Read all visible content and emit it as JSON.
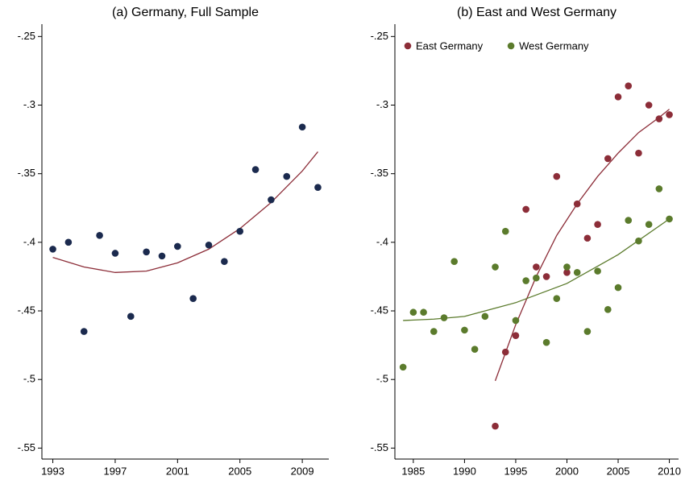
{
  "chart_data": [
    {
      "type": "scatter",
      "title": "(a) Germany, Full Sample",
      "xlim": [
        1992.3,
        2010.7
      ],
      "ylim": [
        -0.558,
        -0.241
      ],
      "xticks": [
        1993,
        1997,
        2001,
        2005,
        2009
      ],
      "yticks": [
        {
          "value": -0.25,
          "label": "-.25"
        },
        {
          "value": -0.3,
          "label": "-.3"
        },
        {
          "value": -0.35,
          "label": "-.35"
        },
        {
          "value": -0.4,
          "label": "-.4"
        },
        {
          "value": -0.45,
          "label": "-.45"
        },
        {
          "value": -0.5,
          "label": "-.5"
        },
        {
          "value": -0.55,
          "label": "-.55"
        }
      ],
      "series": [
        {
          "color": "#1b2a4e",
          "x": [
            1993,
            1994,
            1995,
            1996,
            1997,
            1998,
            1999,
            2000,
            2001,
            2002,
            2003,
            2004,
            2005,
            2006,
            2007,
            2008,
            2009,
            2010
          ],
          "values": [
            -0.405,
            -0.4,
            -0.465,
            -0.395,
            -0.408,
            -0.454,
            -0.407,
            -0.41,
            -0.403,
            -0.441,
            -0.402,
            -0.414,
            -0.392,
            -0.347,
            -0.369,
            -0.352,
            -0.316,
            -0.36
          ],
          "fit": {
            "color": "#8c2d38",
            "x": [
              1993,
              1995,
              1997,
              1999,
              2001,
              2003,
              2005,
              2007,
              2009,
              2010
            ],
            "values": [
              -0.411,
              -0.418,
              -0.422,
              -0.421,
              -0.415,
              -0.405,
              -0.39,
              -0.371,
              -0.348,
              -0.334
            ]
          }
        }
      ]
    },
    {
      "type": "scatter",
      "title": "(b) East and West Germany",
      "xlim": [
        1983.2,
        2010.9
      ],
      "ylim": [
        -0.558,
        -0.241
      ],
      "xticks": [
        1985,
        1990,
        1995,
        2000,
        2005,
        2010
      ],
      "yticks": [
        {
          "value": -0.25,
          "label": "-.25"
        },
        {
          "value": -0.3,
          "label": "-.3"
        },
        {
          "value": -0.35,
          "label": "-.35"
        },
        {
          "value": -0.4,
          "label": "-.4"
        },
        {
          "value": -0.45,
          "label": "-.45"
        },
        {
          "value": -0.5,
          "label": "-.5"
        },
        {
          "value": -0.55,
          "label": "-.55"
        }
      ],
      "legend": "top-left",
      "series": [
        {
          "name": "East Germany",
          "color": "#8c2d38",
          "x": [
            1993,
            1994,
            1995,
            1996,
            1997,
            1998,
            1999,
            2000,
            2001,
            2002,
            2003,
            2004,
            2005,
            2006,
            2007,
            2008,
            2009,
            2010
          ],
          "values": [
            -0.534,
            -0.48,
            -0.468,
            -0.376,
            -0.418,
            -0.425,
            -0.352,
            -0.422,
            -0.372,
            -0.397,
            -0.387,
            -0.339,
            -0.294,
            -0.286,
            -0.335,
            -0.3,
            -0.31,
            -0.307
          ],
          "fit": {
            "color": "#8c2d38",
            "x": [
              1993,
              1995,
              1997,
              1999,
              2001,
              2003,
              2005,
              2007,
              2009,
              2010
            ],
            "values": [
              -0.501,
              -0.46,
              -0.425,
              -0.395,
              -0.372,
              -0.352,
              -0.335,
              -0.32,
              -0.309,
              -0.303
            ]
          }
        },
        {
          "name": "West Germany",
          "color": "#5b7b2c",
          "x": [
            1984,
            1985,
            1986,
            1987,
            1988,
            1989,
            1990,
            1991,
            1992,
            1993,
            1994,
            1995,
            1996,
            1997,
            1998,
            1999,
            2000,
            2001,
            2002,
            2003,
            2004,
            2005,
            2006,
            2007,
            2008,
            2009,
            2010
          ],
          "values": [
            -0.491,
            -0.451,
            -0.451,
            -0.465,
            -0.455,
            -0.414,
            -0.464,
            -0.478,
            -0.454,
            -0.418,
            -0.392,
            -0.457,
            -0.428,
            -0.426,
            -0.473,
            -0.441,
            -0.418,
            -0.422,
            -0.465,
            -0.421,
            -0.449,
            -0.433,
            -0.384,
            -0.399,
            -0.387,
            -0.361,
            -0.383
          ],
          "fit": {
            "color": "#5b7b2c",
            "x": [
              1984,
              1987,
              1990,
              1995,
              2000,
              2005,
              2010
            ],
            "values": [
              -0.457,
              -0.456,
              -0.454,
              -0.444,
              -0.43,
              -0.409,
              -0.383
            ]
          }
        }
      ]
    }
  ]
}
